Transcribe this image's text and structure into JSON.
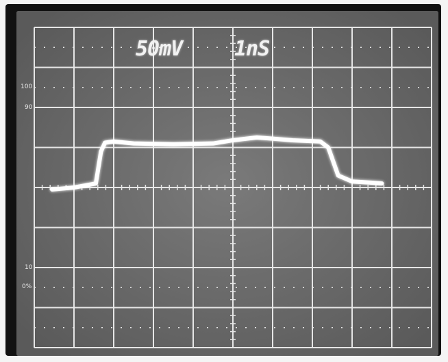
{
  "screen": {
    "volts_per_div": "50mV",
    "time_per_div": "1nS",
    "percent_markers": [
      "100",
      "90",
      "10",
      "0%"
    ]
  },
  "colors": {
    "graticule_background": "#6c6c6c",
    "graticule_lines": "#e6e6e6",
    "trace": "#ffffff"
  },
  "trace": {
    "description_units": "divisions",
    "points": [
      [
        0.45,
        -0.05
      ],
      [
        1.0,
        0.0
      ],
      [
        1.55,
        0.1
      ],
      [
        1.68,
        0.9
      ],
      [
        1.78,
        1.12
      ],
      [
        2.0,
        1.15
      ],
      [
        2.5,
        1.1
      ],
      [
        3.5,
        1.08
      ],
      [
        4.5,
        1.1
      ],
      [
        5.0,
        1.18
      ],
      [
        5.6,
        1.25
      ],
      [
        6.0,
        1.22
      ],
      [
        6.5,
        1.18
      ],
      [
        7.2,
        1.15
      ],
      [
        7.4,
        1.0
      ],
      [
        7.65,
        0.3
      ],
      [
        8.0,
        0.15
      ],
      [
        8.5,
        0.12
      ],
      [
        8.75,
        0.1
      ]
    ]
  }
}
